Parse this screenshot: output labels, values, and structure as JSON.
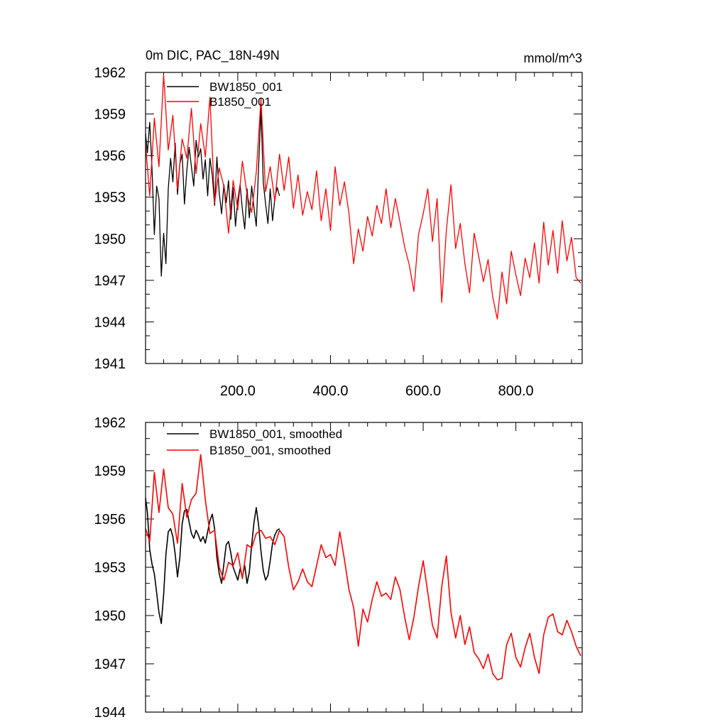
{
  "chart_data": [
    {
      "type": "line",
      "title": "0m DIC, PAC_18N-49N",
      "units": "mmol/m^3",
      "xlim": [
        1,
        943
      ],
      "ylim": [
        1941,
        1962
      ],
      "yticks": [
        1941,
        1944,
        1947,
        1950,
        1953,
        1956,
        1959,
        1962
      ],
      "ytick_labels": [
        "1941",
        "1944",
        "1947",
        "1950",
        "1953",
        "1956",
        "1959",
        "1962"
      ],
      "xticks": [
        200,
        400,
        600,
        800
      ],
      "xtick_labels": [
        "200.0",
        "400.0",
        "600.0",
        "800.0"
      ],
      "legend_position": "top-left",
      "grid": false,
      "series": [
        {
          "name": "BW1850_001",
          "color": "#000000",
          "x": [
            1,
            5,
            10,
            15,
            20,
            25,
            30,
            35,
            40,
            45,
            50,
            55,
            60,
            65,
            70,
            75,
            80,
            85,
            90,
            95,
            100,
            105,
            110,
            115,
            120,
            125,
            130,
            135,
            140,
            145,
            150,
            155,
            160,
            165,
            170,
            175,
            180,
            185,
            190,
            195,
            200,
            205,
            210,
            215,
            220,
            225,
            230,
            235,
            240,
            245,
            250,
            255,
            260,
            265,
            270,
            275,
            280,
            285,
            290
          ],
          "y": [
            1957.6,
            1956.2,
            1958.4,
            1955.1,
            1950.3,
            1953.8,
            1952.9,
            1947.3,
            1950.4,
            1948.2,
            1953.6,
            1955.8,
            1954.1,
            1956.9,
            1953.2,
            1955.4,
            1956.1,
            1952.5,
            1954.9,
            1956.6,
            1955.2,
            1953.8,
            1957.1,
            1955.9,
            1956.5,
            1954.3,
            1955.7,
            1953.1,
            1955.8,
            1954.6,
            1952.4,
            1955.9,
            1953.3,
            1951.8,
            1953.9,
            1952.6,
            1954.2,
            1951.4,
            1953.7,
            1950.9,
            1952.8,
            1953.9,
            1952.1,
            1950.7,
            1953.6,
            1951.5,
            1953.8,
            1952.2,
            1950.9,
            1955.3,
            1959.4,
            1954.1,
            1952.5,
            1951.1,
            1953.6,
            1951.3,
            1952.9,
            1953.7,
            1953.1
          ]
        },
        {
          "name": "B1850_001",
          "color": "#ff0000",
          "x": [
            1,
            10,
            20,
            30,
            40,
            50,
            60,
            70,
            80,
            90,
            100,
            110,
            120,
            130,
            140,
            150,
            160,
            170,
            180,
            190,
            200,
            210,
            220,
            230,
            240,
            250,
            260,
            270,
            280,
            290,
            300,
            310,
            320,
            330,
            340,
            350,
            360,
            370,
            380,
            390,
            400,
            410,
            420,
            430,
            440,
            450,
            460,
            470,
            480,
            490,
            500,
            510,
            520,
            530,
            540,
            550,
            560,
            570,
            580,
            590,
            600,
            610,
            620,
            630,
            640,
            650,
            660,
            670,
            680,
            690,
            700,
            710,
            720,
            730,
            740,
            750,
            760,
            770,
            780,
            790,
            800,
            810,
            820,
            830,
            840,
            850,
            860,
            870,
            880,
            890,
            900,
            910,
            920,
            930,
            940
          ],
          "y": [
            1956.8,
            1953.1,
            1958.7,
            1955.2,
            1961.8,
            1956.4,
            1958.9,
            1953.6,
            1957.2,
            1955.8,
            1959.4,
            1954.7,
            1958.3,
            1955.9,
            1960.2,
            1952.6,
            1955.1,
            1953.8,
            1950.4,
            1954.2,
            1952.1,
            1955.6,
            1953.2,
            1951.9,
            1954.8,
            1960.1,
            1953.4,
            1955.2,
            1952.7,
            1956.1,
            1953.5,
            1955.9,
            1952.2,
            1954.6,
            1951.7,
            1953.4,
            1952.1,
            1954.9,
            1951.3,
            1953.6,
            1950.6,
            1955.2,
            1952.4,
            1954.1,
            1951.8,
            1948.2,
            1950.7,
            1949.1,
            1951.6,
            1950.2,
            1952.4,
            1951.1,
            1953.6,
            1950.8,
            1952.9,
            1951.2,
            1949.4,
            1948.1,
            1946.2,
            1950.3,
            1951.8,
            1953.6,
            1949.8,
            1952.9,
            1945.4,
            1950.6,
            1953.9,
            1949.3,
            1951.1,
            1948.2,
            1946.1,
            1950.4,
            1948.7,
            1946.9,
            1948.5,
            1945.8,
            1944.2,
            1947.6,
            1945.3,
            1949.1,
            1947.4,
            1945.9,
            1948.6,
            1947.2,
            1949.7,
            1946.8,
            1951.2,
            1948.1,
            1950.6,
            1947.5,
            1951.3,
            1948.4,
            1950.1,
            1947.2,
            1946.8
          ]
        }
      ]
    },
    {
      "type": "line",
      "xlim": [
        1,
        943
      ],
      "ylim": [
        1944,
        1962
      ],
      "yticks": [
        1944,
        1947,
        1950,
        1953,
        1956,
        1959,
        1962
      ],
      "ytick_labels": [
        "1944",
        "1947",
        "1950",
        "1953",
        "1956",
        "1959",
        "1962"
      ],
      "xticks": [
        200,
        400,
        600,
        800
      ],
      "legend_position": "top-left",
      "grid": false,
      "series": [
        {
          "name": "BW1850_001, smoothed",
          "color": "#000000",
          "x": [
            1,
            5,
            10,
            15,
            20,
            25,
            30,
            35,
            40,
            45,
            50,
            55,
            60,
            65,
            70,
            75,
            80,
            85,
            90,
            95,
            100,
            105,
            110,
            115,
            120,
            125,
            130,
            135,
            140,
            145,
            150,
            155,
            160,
            165,
            170,
            175,
            180,
            185,
            190,
            195,
            200,
            205,
            210,
            215,
            220,
            225,
            230,
            235,
            240,
            245,
            250,
            255,
            260,
            265,
            270,
            275,
            280,
            285,
            290
          ],
          "y": [
            1957.3,
            1956.4,
            1954.1,
            1953.2,
            1952.6,
            1951.4,
            1950.2,
            1949.5,
            1951.3,
            1953.8,
            1955.2,
            1955.4,
            1954.9,
            1953.8,
            1952.4,
            1953.6,
            1955.7,
            1956.5,
            1956.6,
            1955.8,
            1955.1,
            1954.8,
            1955.3,
            1955.0,
            1954.6,
            1954.9,
            1954.5,
            1955.2,
            1955.9,
            1956.3,
            1955.4,
            1953.6,
            1952.6,
            1952.0,
            1953.2,
            1954.4,
            1954.6,
            1953.9,
            1953.0,
            1952.6,
            1952.2,
            1952.9,
            1952.4,
            1953.1,
            1952.0,
            1952.7,
            1954.4,
            1955.8,
            1956.7,
            1955.6,
            1954.0,
            1952.8,
            1952.2,
            1952.5,
            1953.4,
            1954.5,
            1955.0,
            1955.3,
            1955.4
          ]
        },
        {
          "name": "B1850_001, smoothed",
          "color": "#ff0000",
          "x": [
            1,
            10,
            20,
            30,
            40,
            50,
            60,
            70,
            80,
            90,
            100,
            110,
            120,
            130,
            140,
            150,
            160,
            170,
            180,
            190,
            200,
            210,
            220,
            230,
            240,
            250,
            260,
            270,
            280,
            290,
            300,
            310,
            320,
            330,
            340,
            350,
            360,
            370,
            380,
            390,
            400,
            410,
            420,
            430,
            440,
            450,
            460,
            470,
            480,
            490,
            500,
            510,
            520,
            530,
            540,
            550,
            560,
            570,
            580,
            590,
            600,
            610,
            620,
            630,
            640,
            650,
            660,
            670,
            680,
            690,
            700,
            710,
            720,
            730,
            740,
            750,
            760,
            770,
            780,
            790,
            800,
            810,
            820,
            830,
            840,
            850,
            860,
            870,
            880,
            890,
            900,
            910,
            920,
            930,
            940
          ],
          "y": [
            1955.4,
            1954.6,
            1958.9,
            1956.4,
            1959.1,
            1956.7,
            1956.3,
            1954.5,
            1958.2,
            1956.1,
            1957.2,
            1957.6,
            1960.0,
            1957.2,
            1955.1,
            1955.3,
            1953.0,
            1952.2,
            1953.3,
            1953.1,
            1953.9,
            1952.3,
            1954.4,
            1954.2,
            1955.1,
            1955.3,
            1954.8,
            1954.9,
            1954.4,
            1955.3,
            1954.9,
            1953.0,
            1951.6,
            1952.1,
            1952.9,
            1952.1,
            1951.8,
            1953.1,
            1954.4,
            1953.6,
            1953.8,
            1953.1,
            1955.2,
            1953.5,
            1951.6,
            1950.5,
            1948.1,
            1950.4,
            1949.6,
            1951.0,
            1952.1,
            1951.2,
            1951.4,
            1951.0,
            1952.4,
            1951.6,
            1949.9,
            1948.5,
            1949.9,
            1951.8,
            1953.4,
            1951.4,
            1949.4,
            1948.6,
            1951.8,
            1953.7,
            1950.2,
            1948.6,
            1950.0,
            1948.2,
            1949.3,
            1947.7,
            1947.3,
            1946.7,
            1947.6,
            1946.4,
            1946.0,
            1946.1,
            1948.2,
            1948.9,
            1947.4,
            1946.8,
            1948.0,
            1948.9,
            1947.4,
            1946.4,
            1948.8,
            1949.9,
            1950.1,
            1949.0,
            1948.8,
            1949.7,
            1949.0,
            1948.1,
            1947.5
          ]
        }
      ]
    }
  ]
}
